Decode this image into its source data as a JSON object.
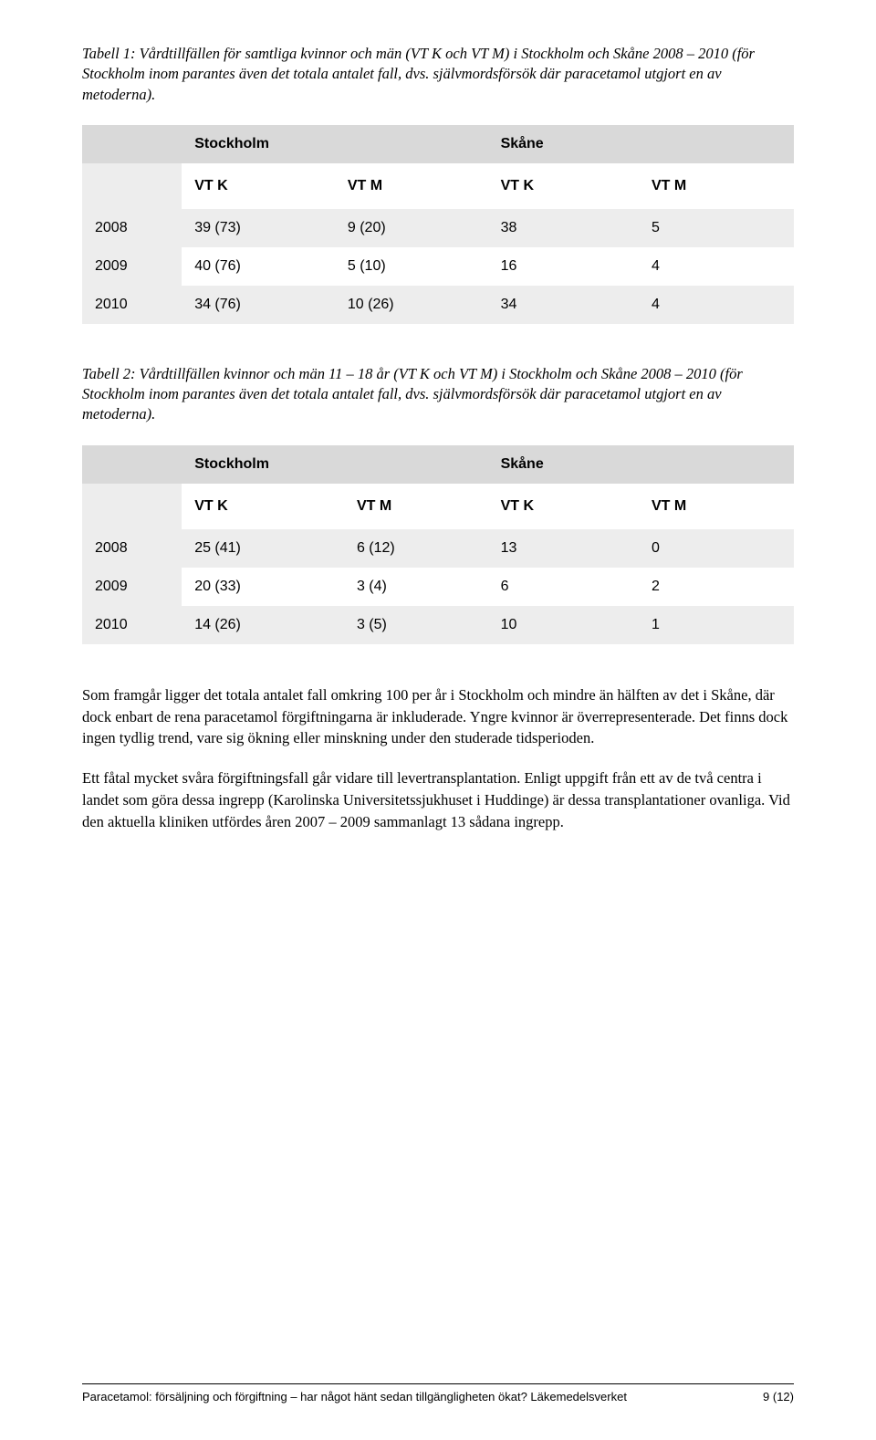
{
  "table1": {
    "caption": "Tabell 1: Vårdtillfällen för samtliga kvinnor och män (VT K och VT M) i Stockholm och Skåne 2008 – 2010 (för Stockholm inom parantes även det totala antalet fall, dvs. självmordsförsök där paracetamol utgjort en av metoderna).",
    "region1": "Stockholm",
    "region2": "Skåne",
    "columns": [
      "VT K",
      "VT M",
      "VT K",
      "VT M"
    ],
    "colors": {
      "header_bg": "#d9d9d9",
      "row_shade_bg": "#ededed",
      "row_plain_bg": "#ffffff",
      "text": "#000000"
    },
    "rows": [
      {
        "year": "2008",
        "cells": [
          "39 (73)",
          "9 (20)",
          "38",
          "5"
        ],
        "shaded": true
      },
      {
        "year": "2009",
        "cells": [
          "40 (76)",
          "5 (10)",
          "16",
          "4"
        ],
        "shaded": false
      },
      {
        "year": "2010",
        "cells": [
          "34 (76)",
          "10 (26)",
          "34",
          "4"
        ],
        "shaded": true
      }
    ]
  },
  "table2": {
    "caption": "Tabell 2: Vårdtillfällen kvinnor och män 11 – 18 år (VT K och VT M) i Stockholm och Skåne 2008 – 2010 (för Stockholm inom parantes även det totala antalet fall, dvs. självmordsförsök där paracetamol utgjort en av metoderna).",
    "region1": "Stockholm",
    "region2": "Skåne",
    "columns": [
      "VT K",
      "VT M",
      "VT K",
      "VT M"
    ],
    "colors": {
      "header_bg": "#d9d9d9",
      "row_shade_bg": "#ededed",
      "row_plain_bg": "#ffffff",
      "text": "#000000"
    },
    "rows": [
      {
        "year": "2008",
        "cells": [
          "25 (41)",
          "6 (12)",
          "13",
          "0"
        ],
        "shaded": true
      },
      {
        "year": "2009",
        "cells": [
          "20 (33)",
          "3 (4)",
          "6",
          "2"
        ],
        "shaded": false
      },
      {
        "year": "2010",
        "cells": [
          "14 (26)",
          "3 (5)",
          "10",
          "1"
        ],
        "shaded": true
      }
    ]
  },
  "paragraphs": {
    "p1": "Som framgår ligger det totala antalet fall omkring 100 per år i Stockholm och mindre än hälften av det i Skåne, där dock enbart de rena paracetamol förgiftningarna är inkluderade. Yngre kvinnor är överrepresenterade. Det finns dock ingen tydlig trend, vare sig ökning eller minskning under den studerade tidsperioden.",
    "p2": "Ett fåtal mycket svåra förgiftningsfall går vidare till levertransplantation. Enligt uppgift från ett av de två centra i landet som göra dessa ingrepp (Karolinska Universitetssjukhuset i Huddinge) är dessa transplantationer ovanliga. Vid den aktuella kliniken utfördes åren 2007 – 2009 sammanlagt 13 sådana ingrepp."
  },
  "footer": {
    "left": "Paracetamol: försäljning och förgiftning – har något hänt sedan tillgängligheten ökat?  Läkemedelsverket",
    "right": "9 (12)"
  }
}
